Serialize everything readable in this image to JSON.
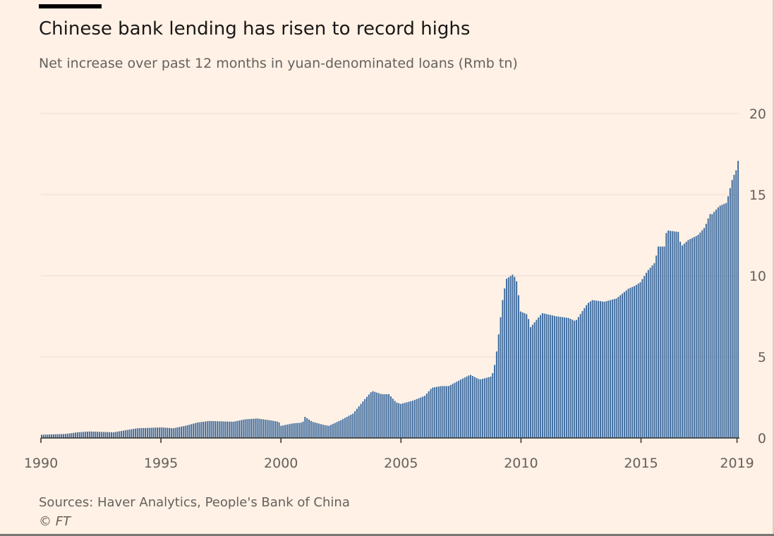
{
  "title": "Chinese bank lending has risen to record highs",
  "subtitle": "Net increase over past 12 months in yuan-denominated loans (Rmb tn)",
  "source": "Sources: Haver Analytics, People's Bank of China",
  "credit": "© FT",
  "colors": {
    "background": "#fff1e5",
    "bar": "#3b6a9e",
    "grid": "#e9ddd1",
    "axis": "#33302e",
    "text": "#66605c"
  },
  "chart_data": {
    "type": "bar",
    "title": "Chinese bank lending has risen to record highs",
    "subtitle": "Net increase over past 12 months in yuan-denominated loans (Rmb tn)",
    "x_range": [
      1990.0,
      2019.1
    ],
    "ylim": [
      0,
      20
    ],
    "y_ticks": [
      0,
      5,
      10,
      15,
      20
    ],
    "y_axis_side": "right",
    "x_tick_labels": [
      "1990",
      "1995",
      "2000",
      "2005",
      "2010",
      "2015",
      "2019"
    ],
    "x_tick_values": [
      1990,
      1995,
      2000,
      2005,
      2010,
      2015,
      2019
    ],
    "grid": true,
    "frequency": "monthly",
    "anchor_points": [
      [
        1990.0,
        0.2
      ],
      [
        1991.0,
        0.25
      ],
      [
        1991.5,
        0.35
      ],
      [
        1992.0,
        0.4
      ],
      [
        1993.0,
        0.35
      ],
      [
        1994.0,
        0.6
      ],
      [
        1995.0,
        0.65
      ],
      [
        1995.5,
        0.6
      ],
      [
        1996.0,
        0.75
      ],
      [
        1996.5,
        0.95
      ],
      [
        1997.0,
        1.05
      ],
      [
        1998.0,
        1.0
      ],
      [
        1998.5,
        1.15
      ],
      [
        1999.0,
        1.2
      ],
      [
        1999.5,
        1.1
      ],
      [
        1999.9,
        1.0
      ],
      [
        2000.0,
        0.75
      ],
      [
        2000.5,
        0.9
      ],
      [
        2000.9,
        0.95
      ],
      [
        2001.0,
        1.3
      ],
      [
        2001.3,
        1.0
      ],
      [
        2001.8,
        0.8
      ],
      [
        2002.0,
        0.75
      ],
      [
        2002.5,
        1.1
      ],
      [
        2003.0,
        1.5
      ],
      [
        2003.5,
        2.4
      ],
      [
        2003.8,
        2.9
      ],
      [
        2004.2,
        2.7
      ],
      [
        2004.5,
        2.7
      ],
      [
        2004.8,
        2.2
      ],
      [
        2005.0,
        2.1
      ],
      [
        2005.5,
        2.3
      ],
      [
        2006.0,
        2.6
      ],
      [
        2006.3,
        3.1
      ],
      [
        2006.7,
        3.2
      ],
      [
        2007.0,
        3.2
      ],
      [
        2007.5,
        3.6
      ],
      [
        2007.9,
        3.9
      ],
      [
        2008.3,
        3.6
      ],
      [
        2008.8,
        3.8
      ],
      [
        2008.95,
        4.7
      ],
      [
        2009.1,
        6.6
      ],
      [
        2009.25,
        8.5
      ],
      [
        2009.4,
        9.8
      ],
      [
        2009.7,
        10.1
      ],
      [
        2009.85,
        9.6
      ],
      [
        2010.0,
        7.8
      ],
      [
        2010.3,
        7.6
      ],
      [
        2010.4,
        6.8
      ],
      [
        2010.9,
        7.7
      ],
      [
        2011.5,
        7.5
      ],
      [
        2012.0,
        7.4
      ],
      [
        2012.3,
        7.2
      ],
      [
        2012.8,
        8.3
      ],
      [
        2013.0,
        8.5
      ],
      [
        2013.5,
        8.4
      ],
      [
        2014.0,
        8.6
      ],
      [
        2014.5,
        9.2
      ],
      [
        2014.8,
        9.4
      ],
      [
        2015.0,
        9.6
      ],
      [
        2015.3,
        10.3
      ],
      [
        2015.6,
        10.8
      ],
      [
        2015.75,
        11.8
      ],
      [
        2016.0,
        11.8
      ],
      [
        2016.1,
        12.8
      ],
      [
        2016.6,
        12.7
      ],
      [
        2016.7,
        11.8
      ],
      [
        2017.0,
        12.2
      ],
      [
        2017.4,
        12.5
      ],
      [
        2017.7,
        13.0
      ],
      [
        2017.9,
        13.8
      ],
      [
        2018.0,
        13.8
      ],
      [
        2018.3,
        14.3
      ],
      [
        2018.6,
        14.5
      ],
      [
        2018.85,
        16.0
      ],
      [
        2019.0,
        16.5
      ],
      [
        2019.1,
        17.2
      ]
    ]
  }
}
